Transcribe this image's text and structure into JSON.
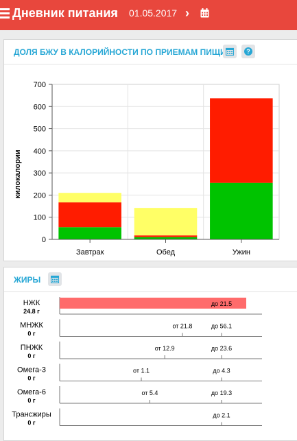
{
  "header": {
    "title": "Дневник питания",
    "prev_glyph": "‹",
    "date": "01.05.2017",
    "next_glyph": "›",
    "calendar_icon": "calendar-icon",
    "menu_icon": "hamburger-icon"
  },
  "chart_card": {
    "title": "ДОЛЯ БЖУ В КАЛОРИЙНОСТИ ПО ПРИЕМАМ ПИЩИ",
    "calendar_icon": "calendar-icon",
    "help_label": "?"
  },
  "chart_data": {
    "type": "bar",
    "stacked": true,
    "categories": [
      "Завтрак",
      "Обед",
      "Ужин"
    ],
    "series": [
      {
        "color": "#00c300",
        "values": [
          55,
          10,
          255
        ]
      },
      {
        "color": "#ff1c00",
        "values": [
          112,
          8,
          382
        ]
      },
      {
        "color": "#ffff66",
        "values": [
          43,
          124,
          0
        ]
      }
    ],
    "ylabel": "килокалории",
    "yticks": [
      "0",
      "100",
      "200",
      "300",
      "400",
      "500",
      "600",
      "700"
    ],
    "ylim": [
      0,
      700
    ],
    "grid": true
  },
  "fats_card": {
    "title": "ЖИРЫ",
    "calendar_icon": "calendar-icon",
    "rows": [
      {
        "name": "НЖК",
        "amount": "24.8 г",
        "min_text": "",
        "max_text": "до 21.5",
        "value": 24.8,
        "min": null,
        "max": 21.5
      },
      {
        "name": "МНЖК",
        "amount": "0 г",
        "min_text": "от 21.8",
        "max_text": "до 56.1",
        "value": 0,
        "min": 21.8,
        "max": 56.1
      },
      {
        "name": "ПНЖК",
        "amount": "0 г",
        "min_text": "от 12.9",
        "max_text": "до 23.6",
        "value": 0,
        "min": 12.9,
        "max": 23.6
      },
      {
        "name": "Омега-3",
        "amount": "0 г",
        "min_text": "от 1.1",
        "max_text": "до 4.3",
        "value": 0,
        "min": 1.1,
        "max": 4.3
      },
      {
        "name": "Омега-6",
        "amount": "0 г",
        "min_text": "от 5.4",
        "max_text": "до 19.3",
        "value": 0,
        "min": 5.4,
        "max": 19.3
      },
      {
        "name": "Трансжиры",
        "amount": "0 г",
        "min_text": "",
        "max_text": "до 2.1",
        "value": 0,
        "min": null,
        "max": 2.1
      }
    ],
    "bar_color": "#ff6b6b"
  }
}
